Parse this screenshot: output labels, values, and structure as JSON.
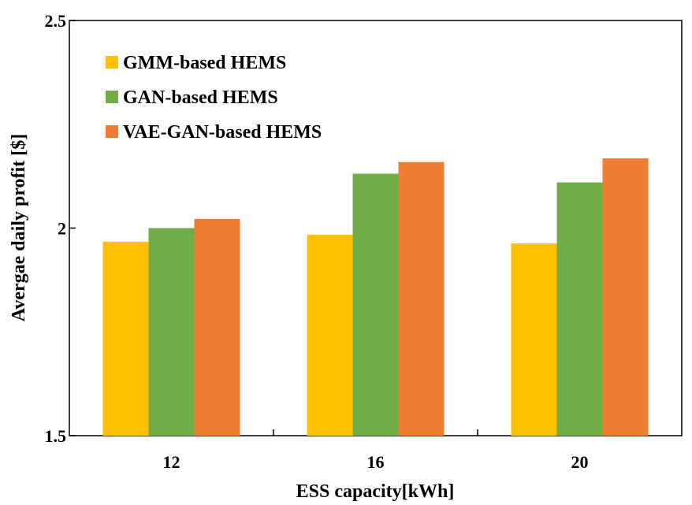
{
  "chart_data": {
    "type": "bar",
    "title": "",
    "xlabel": "ESS capacity[kWh]",
    "ylabel": "Avergae daily profit [$]",
    "categories": [
      "12",
      "16",
      "20"
    ],
    "ylim": [
      1.5,
      2.5
    ],
    "yticks": [
      1.5,
      2,
      2.5
    ],
    "ytick_labels": [
      "1.5",
      "2",
      "2.5"
    ],
    "grid": false,
    "legend_position": "top-left",
    "series": [
      {
        "name": "GMM-based  HEMS",
        "color": "#FFC000",
        "values": [
          1.967,
          1.984,
          1.963
        ]
      },
      {
        "name": "GAN-based  HEMS",
        "color": "#70AD47",
        "values": [
          2.0,
          2.131,
          2.11
        ]
      },
      {
        "name": "VAE-GAN-based HEMS",
        "color": "#ED7D31",
        "values": [
          2.022,
          2.159,
          2.168
        ]
      }
    ]
  }
}
